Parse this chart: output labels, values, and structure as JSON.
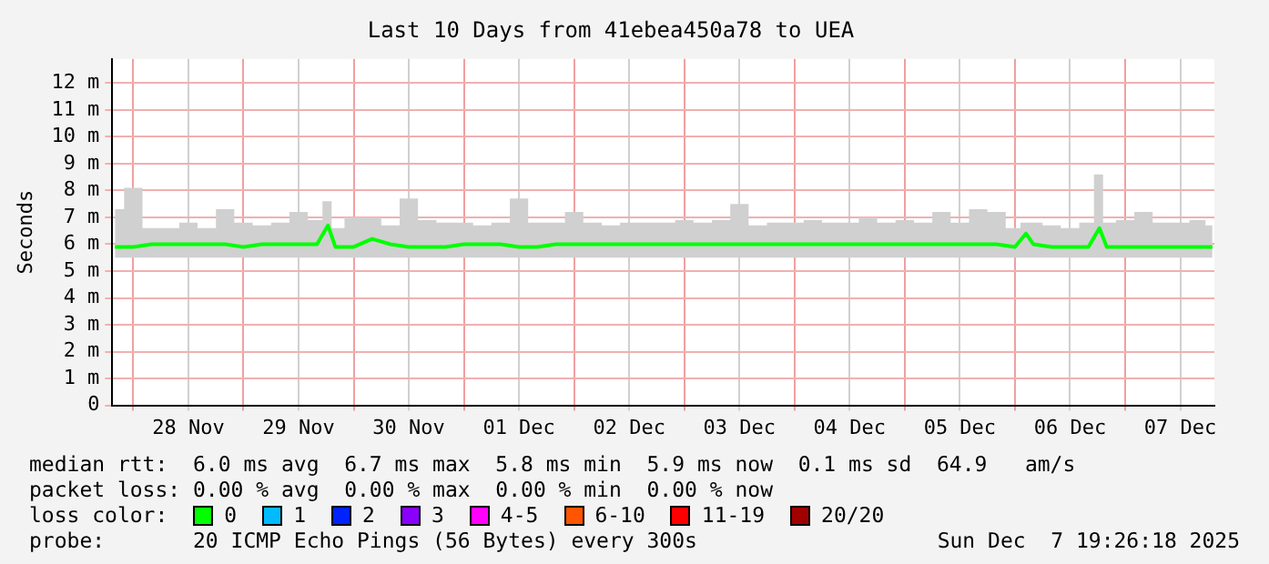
{
  "chart_data": {
    "type": "line",
    "title": "Last 10 Days from 41ebea450a78 to UEA",
    "ylabel": "Seconds",
    "legend_title": "loss color:",
    "legend": "bottom",
    "grid": true,
    "marker": "none",
    "line_style": "solid",
    "xlim": [
      "2025-11-27T19:26",
      "2025-12-07T19:26"
    ],
    "xticks": [
      {
        "value": "2025-11-28T00:00",
        "label": null
      },
      {
        "value": "2025-11-28T12:00",
        "label": "28 Nov"
      },
      {
        "value": "2025-11-29T00:00",
        "label": null
      },
      {
        "value": "2025-11-29T12:00",
        "label": "29 Nov"
      },
      {
        "value": "2025-11-30T00:00",
        "label": null
      },
      {
        "value": "2025-11-30T12:00",
        "label": "30 Nov"
      },
      {
        "value": "2025-12-01T00:00",
        "label": null
      },
      {
        "value": "2025-12-01T12:00",
        "label": "01 Dec"
      },
      {
        "value": "2025-12-02T00:00",
        "label": null
      },
      {
        "value": "2025-12-02T12:00",
        "label": "02 Dec"
      },
      {
        "value": "2025-12-03T00:00",
        "label": null
      },
      {
        "value": "2025-12-03T12:00",
        "label": "03 Dec"
      },
      {
        "value": "2025-12-04T00:00",
        "label": null
      },
      {
        "value": "2025-12-04T12:00",
        "label": "04 Dec"
      },
      {
        "value": "2025-12-05T00:00",
        "label": null
      },
      {
        "value": "2025-12-05T12:00",
        "label": "05 Dec"
      },
      {
        "value": "2025-12-06T00:00",
        "label": null
      },
      {
        "value": "2025-12-06T12:00",
        "label": "06 Dec"
      },
      {
        "value": "2025-12-07T00:00",
        "label": null
      },
      {
        "value": "2025-12-07T12:00",
        "label": "07 Dec"
      }
    ],
    "ylim": [
      0,
      12.9
    ],
    "yticks": [
      0,
      {
        "value": 1,
        "label": "1 m"
      },
      {
        "value": 2,
        "label": "2 m"
      },
      {
        "value": 3,
        "label": "3 m"
      },
      {
        "value": 4,
        "label": "4 m"
      },
      {
        "value": 5,
        "label": "5 m"
      },
      {
        "value": 6,
        "label": "6 m"
      },
      {
        "value": 7,
        "label": "7 m"
      },
      {
        "value": 8,
        "label": "8 m"
      },
      {
        "value": 9,
        "label": "9 m"
      },
      {
        "value": 10,
        "label": "10 m"
      },
      {
        "value": 11,
        "label": "11 m"
      },
      {
        "value": 12,
        "label": "12 m"
      }
    ],
    "x": [
      "2025-11-27T20:00",
      "2025-11-28T00:00",
      "2025-11-28T04:00",
      "2025-11-28T08:00",
      "2025-11-28T12:00",
      "2025-11-28T16:00",
      "2025-11-28T20:00",
      "2025-11-29T00:00",
      "2025-11-29T04:00",
      "2025-11-29T08:00",
      "2025-11-29T12:00",
      "2025-11-29T16:00",
      "2025-11-29T18:24",
      "2025-11-29T20:00",
      "2025-11-30T00:00",
      "2025-11-30T04:00",
      "2025-11-30T08:00",
      "2025-11-30T12:00",
      "2025-11-30T16:00",
      "2025-11-30T20:00",
      "2025-12-01T00:00",
      "2025-12-01T04:00",
      "2025-12-01T08:00",
      "2025-12-01T12:00",
      "2025-12-01T16:00",
      "2025-12-01T20:00",
      "2025-12-02T00:00",
      "2025-12-02T04:00",
      "2025-12-02T08:00",
      "2025-12-02T12:00",
      "2025-12-02T16:00",
      "2025-12-02T20:00",
      "2025-12-03T00:00",
      "2025-12-03T04:00",
      "2025-12-03T08:00",
      "2025-12-03T12:00",
      "2025-12-03T16:00",
      "2025-12-03T20:00",
      "2025-12-04T00:00",
      "2025-12-04T04:00",
      "2025-12-04T08:00",
      "2025-12-04T12:00",
      "2025-12-04T16:00",
      "2025-12-04T20:00",
      "2025-12-05T00:00",
      "2025-12-05T04:00",
      "2025-12-05T08:00",
      "2025-12-05T12:00",
      "2025-12-05T16:00",
      "2025-12-05T20:00",
      "2025-12-06T00:00",
      "2025-12-06T02:24",
      "2025-12-06T04:00",
      "2025-12-06T08:00",
      "2025-12-06T12:00",
      "2025-12-06T16:00",
      "2025-12-06T18:24",
      "2025-12-06T20:00",
      "2025-12-07T00:00",
      "2025-12-07T04:00",
      "2025-12-07T08:00",
      "2025-12-07T12:00",
      "2025-12-07T16:00",
      "2025-12-07T19:00"
    ],
    "series": [
      {
        "name": "0",
        "color": "#00ff00",
        "values": [
          5.9,
          5.9,
          6.0,
          6.0,
          6.0,
          6.0,
          6.0,
          5.9,
          6.0,
          6.0,
          6.0,
          6.0,
          6.7,
          5.9,
          5.9,
          6.2,
          6.0,
          5.9,
          5.9,
          5.9,
          6.0,
          6.0,
          6.0,
          5.9,
          5.9,
          6.0,
          6.0,
          6.0,
          6.0,
          6.0,
          6.0,
          6.0,
          6.0,
          6.0,
          6.0,
          6.0,
          6.0,
          6.0,
          6.0,
          6.0,
          6.0,
          6.0,
          6.0,
          6.0,
          6.0,
          6.0,
          6.0,
          6.0,
          6.0,
          6.0,
          5.9,
          6.4,
          6.0,
          5.9,
          5.9,
          5.9,
          6.6,
          5.9,
          5.9,
          5.9,
          5.9,
          5.9,
          5.9,
          5.9
        ],
        "lower": [
          5.5,
          5.5,
          5.5,
          5.5,
          5.5,
          5.5,
          5.5,
          5.5,
          5.5,
          5.5,
          5.5,
          5.5,
          5.5,
          5.5,
          5.5,
          5.5,
          5.5,
          5.5,
          5.5,
          5.5,
          5.5,
          5.5,
          5.5,
          5.5,
          5.5,
          5.5,
          5.5,
          5.5,
          5.5,
          5.5,
          5.5,
          5.5,
          5.5,
          5.5,
          5.5,
          5.5,
          5.5,
          5.5,
          5.5,
          5.5,
          5.5,
          5.5,
          5.5,
          5.5,
          5.5,
          5.5,
          5.5,
          5.5,
          5.5,
          5.5,
          5.5,
          5.5,
          5.5,
          5.5,
          5.5,
          5.5,
          5.5,
          5.5,
          5.5,
          5.5,
          5.5,
          5.5,
          5.5,
          5.5
        ],
        "upper": [
          7.3,
          8.1,
          6.6,
          6.6,
          6.8,
          6.6,
          7.3,
          6.8,
          6.7,
          6.8,
          7.2,
          6.9,
          7.6,
          6.6,
          7.0,
          7.0,
          6.7,
          7.7,
          6.9,
          6.8,
          6.8,
          6.7,
          6.8,
          7.7,
          6.8,
          6.8,
          7.2,
          6.8,
          6.7,
          6.8,
          6.8,
          6.8,
          6.9,
          6.8,
          6.9,
          7.5,
          6.7,
          6.8,
          6.8,
          6.9,
          6.8,
          6.8,
          7.0,
          6.8,
          6.9,
          6.8,
          7.2,
          6.8,
          7.3,
          7.2,
          6.6,
          6.8,
          6.8,
          6.7,
          6.6,
          6.8,
          8.6,
          6.8,
          6.9,
          7.2,
          6.8,
          6.8,
          6.9,
          6.7
        ]
      },
      {
        "name": "1",
        "color": "#00bbff",
        "values": [
          null,
          null,
          null,
          null,
          null,
          null,
          null,
          null,
          null,
          null,
          null,
          null,
          null,
          null,
          null,
          null,
          null,
          null,
          null,
          null,
          null,
          null,
          null,
          null,
          null,
          null,
          null,
          null,
          null,
          null,
          null,
          null,
          null,
          null,
          null,
          null,
          null,
          null,
          null,
          null,
          null,
          null,
          null,
          null,
          null,
          null,
          null,
          null,
          null,
          null,
          null,
          null,
          null,
          null,
          null,
          null,
          null,
          null,
          null,
          null,
          null,
          null,
          null,
          null
        ]
      },
      {
        "name": "2",
        "color": "#0022ff",
        "values": [
          null,
          null,
          null,
          null,
          null,
          null,
          null,
          null,
          null,
          null,
          null,
          null,
          null,
          null,
          null,
          null,
          null,
          null,
          null,
          null,
          null,
          null,
          null,
          null,
          null,
          null,
          null,
          null,
          null,
          null,
          null,
          null,
          null,
          null,
          null,
          null,
          null,
          null,
          null,
          null,
          null,
          null,
          null,
          null,
          null,
          null,
          null,
          null,
          null,
          null,
          null,
          null,
          null,
          null,
          null,
          null,
          null,
          null,
          null,
          null,
          null,
          null,
          null,
          null
        ]
      },
      {
        "name": "3",
        "color": "#8a00ff",
        "values": [
          null,
          null,
          null,
          null,
          null,
          null,
          null,
          null,
          null,
          null,
          null,
          null,
          null,
          null,
          null,
          null,
          null,
          null,
          null,
          null,
          null,
          null,
          null,
          null,
          null,
          null,
          null,
          null,
          null,
          null,
          null,
          null,
          null,
          null,
          null,
          null,
          null,
          null,
          null,
          null,
          null,
          null,
          null,
          null,
          null,
          null,
          null,
          null,
          null,
          null,
          null,
          null,
          null,
          null,
          null,
          null,
          null,
          null,
          null,
          null,
          null,
          null,
          null,
          null
        ]
      },
      {
        "name": "4-5",
        "color": "#ff00ff",
        "values": [
          null,
          null,
          null,
          null,
          null,
          null,
          null,
          null,
          null,
          null,
          null,
          null,
          null,
          null,
          null,
          null,
          null,
          null,
          null,
          null,
          null,
          null,
          null,
          null,
          null,
          null,
          null,
          null,
          null,
          null,
          null,
          null,
          null,
          null,
          null,
          null,
          null,
          null,
          null,
          null,
          null,
          null,
          null,
          null,
          null,
          null,
          null,
          null,
          null,
          null,
          null,
          null,
          null,
          null,
          null,
          null,
          null,
          null,
          null,
          null,
          null,
          null,
          null,
          null
        ]
      },
      {
        "name": "6-10",
        "color": "#ff5500",
        "values": [
          null,
          null,
          null,
          null,
          null,
          null,
          null,
          null,
          null,
          null,
          null,
          null,
          null,
          null,
          null,
          null,
          null,
          null,
          null,
          null,
          null,
          null,
          null,
          null,
          null,
          null,
          null,
          null,
          null,
          null,
          null,
          null,
          null,
          null,
          null,
          null,
          null,
          null,
          null,
          null,
          null,
          null,
          null,
          null,
          null,
          null,
          null,
          null,
          null,
          null,
          null,
          null,
          null,
          null,
          null,
          null,
          null,
          null,
          null,
          null,
          null,
          null,
          null,
          null
        ]
      },
      {
        "name": "11-19",
        "color": "#ff0000",
        "values": [
          null,
          null,
          null,
          null,
          null,
          null,
          null,
          null,
          null,
          null,
          null,
          null,
          null,
          null,
          null,
          null,
          null,
          null,
          null,
          null,
          null,
          null,
          null,
          null,
          null,
          null,
          null,
          null,
          null,
          null,
          null,
          null,
          null,
          null,
          null,
          null,
          null,
          null,
          null,
          null,
          null,
          null,
          null,
          null,
          null,
          null,
          null,
          null,
          null,
          null,
          null,
          null,
          null,
          null,
          null,
          null,
          null,
          null,
          null,
          null,
          null,
          null,
          null,
          null
        ]
      },
      {
        "name": "20/20",
        "color": "#a10000",
        "values": [
          null,
          null,
          null,
          null,
          null,
          null,
          null,
          null,
          null,
          null,
          null,
          null,
          null,
          null,
          null,
          null,
          null,
          null,
          null,
          null,
          null,
          null,
          null,
          null,
          null,
          null,
          null,
          null,
          null,
          null,
          null,
          null,
          null,
          null,
          null,
          null,
          null,
          null,
          null,
          null,
          null,
          null,
          null,
          null,
          null,
          null,
          null,
          null,
          null,
          null,
          null,
          null,
          null,
          null,
          null,
          null,
          null,
          null,
          null,
          null,
          null,
          null,
          null,
          null
        ]
      }
    ],
    "annotations": [
      "median rtt:  6.0 ms avg  6.7 ms max  5.8 ms min  5.9 ms now  0.1 ms sd  64.9   am/s",
      "packet loss: 0.00 % avg  0.00 % max  0.00 % min  0.00 % now",
      "probe:       20 ICMP Echo Pings (56 Bytes) every 300s",
      "Sun Dec  7 19:26:18 2025"
    ]
  }
}
